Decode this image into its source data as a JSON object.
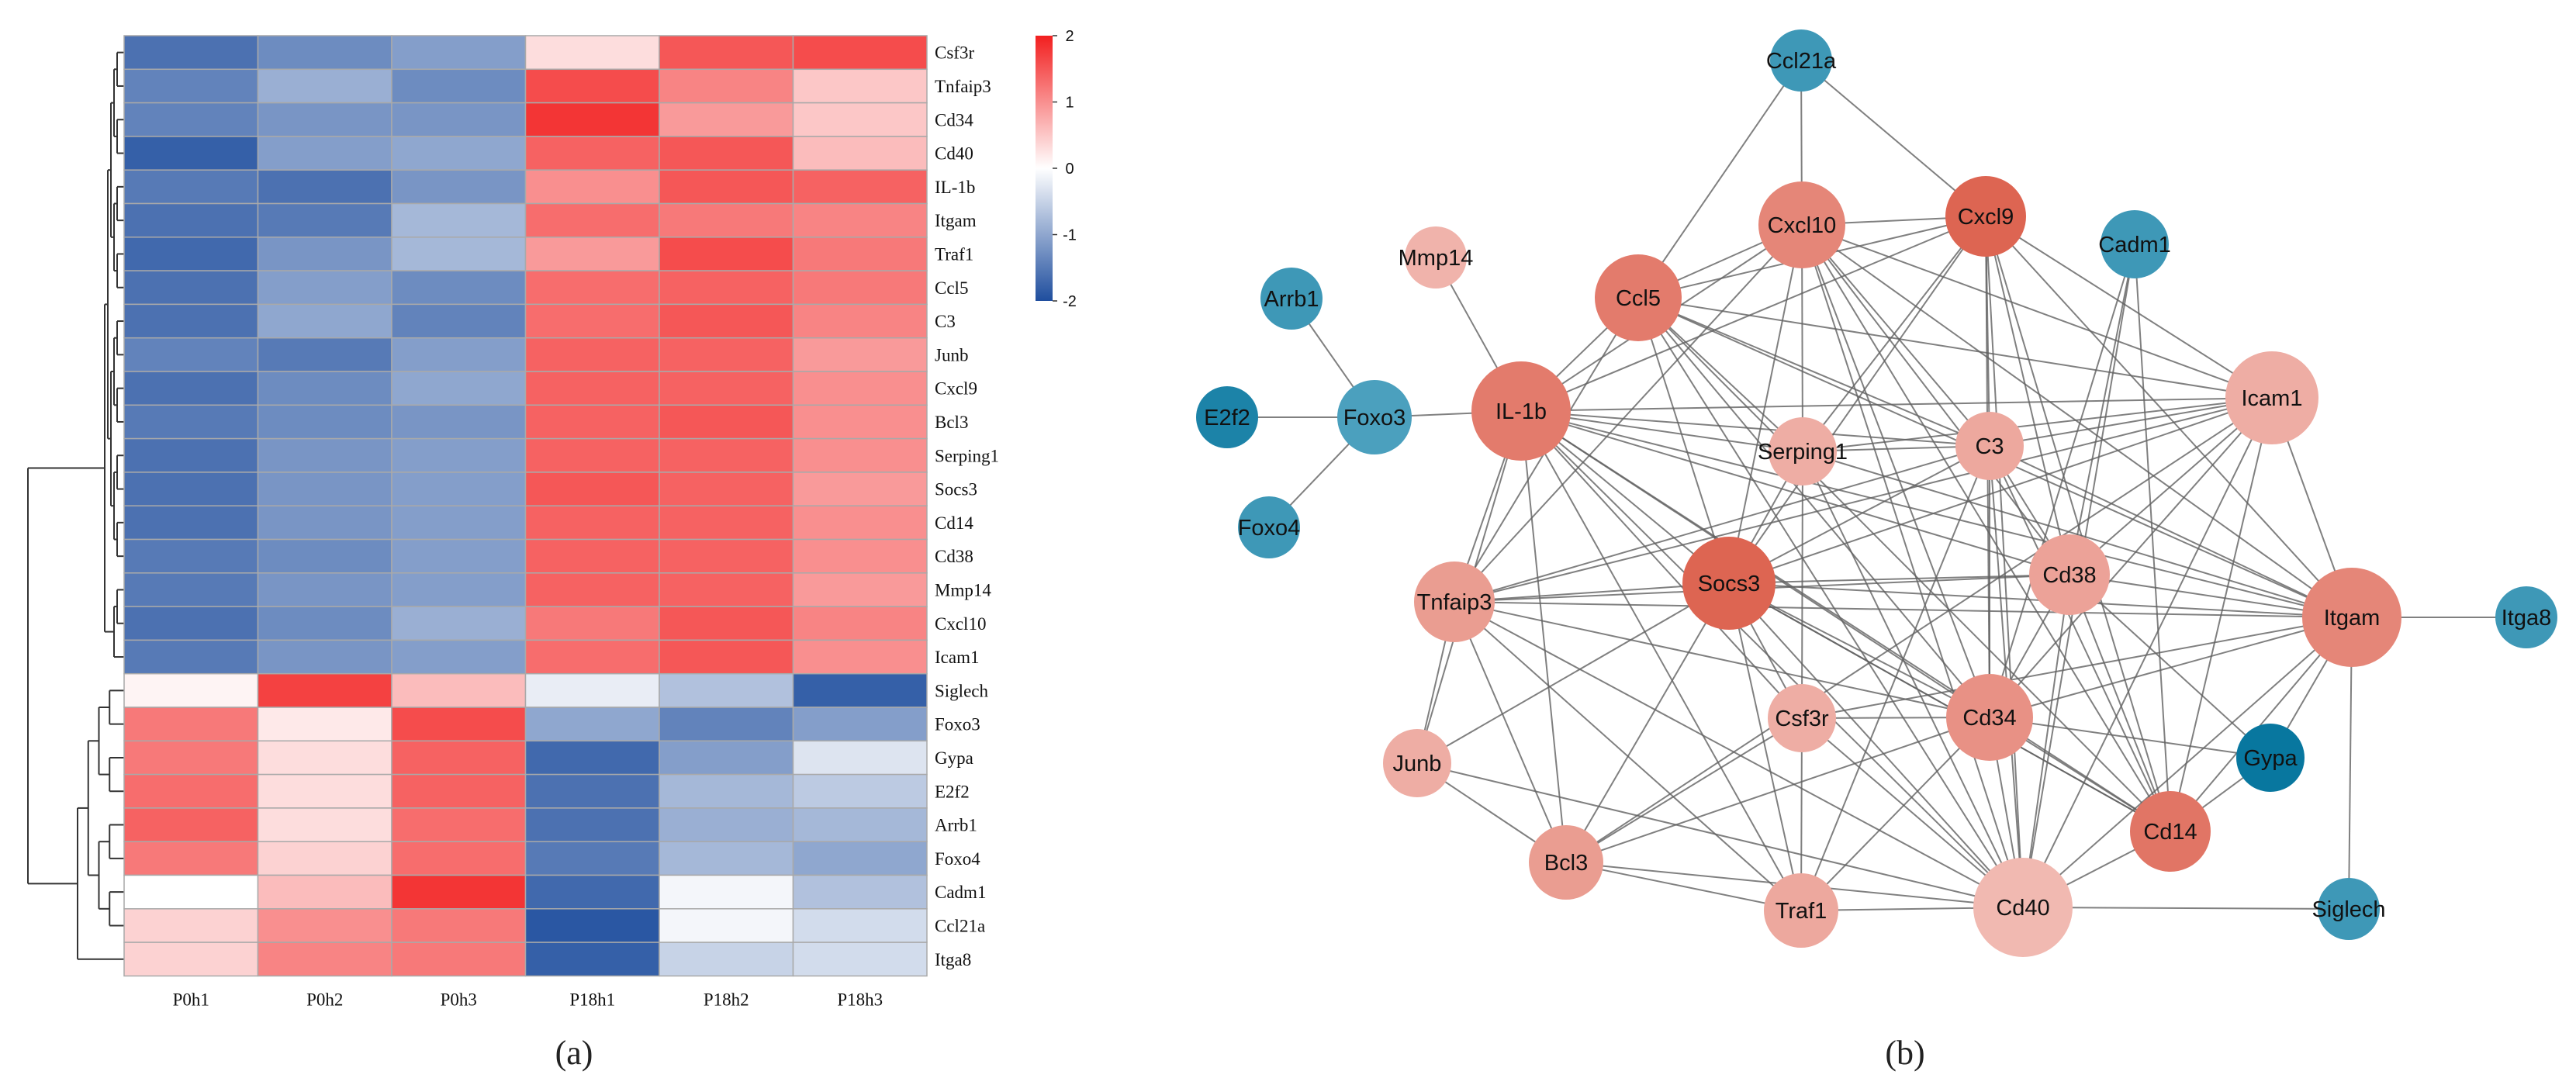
{
  "chart_data": [
    {
      "type": "heatmap",
      "panel_label": "(a)",
      "columns": [
        "P0h1",
        "P0h2",
        "P0h3",
        "P18h1",
        "P18h2",
        "P18h3"
      ],
      "rows": [
        "Csf3r",
        "Tnfaip3",
        "Cd34",
        "Cd40",
        "IL-1b",
        "Itgam",
        "Traf1",
        "Ccl5",
        "C3",
        "Junb",
        "Cxcl9",
        "Bcl3",
        "Serping1",
        "Socs3",
        "Cd14",
        "Cd38",
        "Mmp14",
        "Cxcl10",
        "Icam1",
        "Siglech",
        "Foxo3",
        "Gypa",
        "E2f2",
        "Arrb1",
        "Foxo4",
        "Cadm1",
        "Ccl21a",
        "Itga8"
      ],
      "values": [
        [
          -1.6,
          -1.3,
          -1.1,
          0.3,
          1.5,
          1.6
        ],
        [
          -1.4,
          -0.9,
          -1.3,
          1.6,
          1.1,
          0.5
        ],
        [
          -1.4,
          -1.2,
          -1.2,
          1.8,
          0.9,
          0.5
        ],
        [
          -1.8,
          -1.1,
          -1.0,
          1.4,
          1.5,
          0.6
        ],
        [
          -1.5,
          -1.6,
          -1.2,
          1.0,
          1.5,
          1.4
        ],
        [
          -1.6,
          -1.5,
          -0.8,
          1.3,
          1.2,
          1.1
        ],
        [
          -1.7,
          -1.2,
          -0.8,
          0.9,
          1.6,
          1.2
        ],
        [
          -1.6,
          -1.1,
          -1.3,
          1.3,
          1.4,
          1.2
        ],
        [
          -1.6,
          -1.0,
          -1.4,
          1.3,
          1.5,
          1.1
        ],
        [
          -1.4,
          -1.5,
          -1.1,
          1.4,
          1.4,
          0.9
        ],
        [
          -1.6,
          -1.3,
          -1.0,
          1.4,
          1.4,
          1.0
        ],
        [
          -1.5,
          -1.3,
          -1.2,
          1.4,
          1.5,
          1.0
        ],
        [
          -1.6,
          -1.2,
          -1.1,
          1.4,
          1.4,
          1.0
        ],
        [
          -1.6,
          -1.2,
          -1.1,
          1.5,
          1.4,
          0.9
        ],
        [
          -1.6,
          -1.2,
          -1.1,
          1.4,
          1.4,
          1.0
        ],
        [
          -1.5,
          -1.3,
          -1.1,
          1.4,
          1.4,
          1.0
        ],
        [
          -1.5,
          -1.2,
          -1.1,
          1.4,
          1.4,
          0.9
        ],
        [
          -1.6,
          -1.3,
          -0.9,
          1.2,
          1.5,
          1.1
        ],
        [
          -1.5,
          -1.2,
          -1.1,
          1.3,
          1.5,
          1.0
        ],
        [
          0.1,
          1.7,
          0.6,
          -0.2,
          -0.7,
          -1.8
        ],
        [
          1.2,
          0.2,
          1.6,
          -1.0,
          -1.4,
          -1.1
        ],
        [
          1.2,
          0.3,
          1.4,
          -1.7,
          -1.1,
          -0.3
        ],
        [
          1.3,
          0.3,
          1.4,
          -1.6,
          -0.8,
          -0.6
        ],
        [
          1.4,
          0.3,
          1.3,
          -1.6,
          -0.9,
          -0.8
        ],
        [
          1.2,
          0.4,
          1.3,
          -1.5,
          -0.8,
          -1.0
        ],
        [
          0.0,
          0.6,
          1.8,
          -1.7,
          -0.1,
          -0.7
        ],
        [
          0.4,
          1.0,
          1.2,
          -1.9,
          -0.1,
          -0.4
        ],
        [
          0.4,
          1.1,
          1.2,
          -1.8,
          -0.5,
          -0.4
        ]
      ],
      "colorbar": {
        "min": -2,
        "max": 2,
        "ticks": [
          2,
          1,
          0,
          -1,
          -2
        ],
        "low_color": "#1f4e9e",
        "mid_color": "#ffffff",
        "high_color": "#f21f1f"
      },
      "row_dendrogram": {
        "cluster_break_after_row": 19
      }
    },
    {
      "type": "network",
      "panel_label": "(b)",
      "nodes": [
        {
          "id": "Ccl21a",
          "group": "down",
          "level": 0.6,
          "size": 1.0
        },
        {
          "id": "Mmp14",
          "group": "up",
          "level": 0.25,
          "size": 1.0
        },
        {
          "id": "Arrb1",
          "group": "down",
          "level": 0.6,
          "size": 1.0
        },
        {
          "id": "E2f2",
          "group": "down",
          "level": 0.85,
          "size": 1.0
        },
        {
          "id": "Foxo3",
          "group": "down",
          "level": 0.5,
          "size": 1.2
        },
        {
          "id": "Foxo4",
          "group": "down",
          "level": 0.6,
          "size": 1.0
        },
        {
          "id": "IL-1b",
          "group": "up",
          "level": 0.75,
          "size": 1.6
        },
        {
          "id": "Ccl5",
          "group": "up",
          "level": 0.75,
          "size": 1.4
        },
        {
          "id": "Cxcl10",
          "group": "up",
          "level": 0.65,
          "size": 1.4
        },
        {
          "id": "Cxcl9",
          "group": "up",
          "level": 0.95,
          "size": 1.3
        },
        {
          "id": "Cadm1",
          "group": "down",
          "level": 0.6,
          "size": 1.1
        },
        {
          "id": "Icam1",
          "group": "up",
          "level": 0.3,
          "size": 1.5
        },
        {
          "id": "Serping1",
          "group": "up",
          "level": 0.3,
          "size": 1.1
        },
        {
          "id": "C3",
          "group": "up",
          "level": 0.35,
          "size": 1.1
        },
        {
          "id": "Cd38",
          "group": "up",
          "level": 0.4,
          "size": 1.3
        },
        {
          "id": "Itgam",
          "group": "up",
          "level": 0.65,
          "size": 1.6
        },
        {
          "id": "Itga8",
          "group": "down",
          "level": 0.6,
          "size": 1.0
        },
        {
          "id": "Tnfaip3",
          "group": "up",
          "level": 0.45,
          "size": 1.3
        },
        {
          "id": "Socs3",
          "group": "up",
          "level": 0.95,
          "size": 1.5
        },
        {
          "id": "Csf3r",
          "group": "up",
          "level": 0.3,
          "size": 1.1
        },
        {
          "id": "Cd34",
          "group": "up",
          "level": 0.55,
          "size": 1.4
        },
        {
          "id": "Gypa",
          "group": "down",
          "level": 1.0,
          "size": 1.1
        },
        {
          "id": "Junb",
          "group": "up",
          "level": 0.3,
          "size": 1.1
        },
        {
          "id": "Cd14",
          "group": "up",
          "level": 0.8,
          "size": 1.3
        },
        {
          "id": "Bcl3",
          "group": "up",
          "level": 0.45,
          "size": 1.2
        },
        {
          "id": "Traf1",
          "group": "up",
          "level": 0.35,
          "size": 1.2
        },
        {
          "id": "Cd40",
          "group": "up",
          "level": 0.2,
          "size": 1.6
        },
        {
          "id": "Siglech",
          "group": "down",
          "level": 0.6,
          "size": 1.0
        }
      ],
      "edges": [
        [
          "Ccl21a",
          "Cxcl10"
        ],
        [
          "Ccl21a",
          "Cxcl9"
        ],
        [
          "Ccl21a",
          "Ccl5"
        ],
        [
          "Mmp14",
          "IL-1b"
        ],
        [
          "Arrb1",
          "Foxo3"
        ],
        [
          "E2f2",
          "Foxo3"
        ],
        [
          "Foxo4",
          "Foxo3"
        ],
        [
          "Foxo3",
          "IL-1b"
        ],
        [
          "Itgam",
          "Itga8"
        ],
        [
          "Itgam",
          "Siglech"
        ],
        [
          "Gypa",
          "Cd34"
        ],
        [
          "Gypa",
          "Itgam"
        ],
        [
          "Gypa",
          "Cd14"
        ],
        [
          "Cadm1",
          "Cd34"
        ],
        [
          "Cadm1",
          "Cd38"
        ],
        [
          "Cadm1",
          "Cd14"
        ],
        [
          "Cadm1",
          "Cd40"
        ],
        [
          "IL-1b",
          "Ccl5"
        ],
        [
          "IL-1b",
          "Cxcl10"
        ],
        [
          "IL-1b",
          "Cxcl9"
        ],
        [
          "IL-1b",
          "Icam1"
        ],
        [
          "IL-1b",
          "C3"
        ],
        [
          "IL-1b",
          "Serping1"
        ],
        [
          "IL-1b",
          "Socs3"
        ],
        [
          "IL-1b",
          "Cd38"
        ],
        [
          "IL-1b",
          "Itgam"
        ],
        [
          "IL-1b",
          "Tnfaip3"
        ],
        [
          "IL-1b",
          "Junb"
        ],
        [
          "IL-1b",
          "Bcl3"
        ],
        [
          "IL-1b",
          "Traf1"
        ],
        [
          "IL-1b",
          "Cd40"
        ],
        [
          "IL-1b",
          "Cd34"
        ],
        [
          "IL-1b",
          "Csf3r"
        ],
        [
          "IL-1b",
          "Cd14"
        ],
        [
          "Ccl5",
          "Cxcl10"
        ],
        [
          "Ccl5",
          "Cxcl9"
        ],
        [
          "Ccl5",
          "Icam1"
        ],
        [
          "Ccl5",
          "C3"
        ],
        [
          "Ccl5",
          "Socs3"
        ],
        [
          "Ccl5",
          "Cd40"
        ],
        [
          "Ccl5",
          "Itgam"
        ],
        [
          "Ccl5",
          "Tnfaip3"
        ],
        [
          "Ccl5",
          "Cd34"
        ],
        [
          "Ccl5",
          "Serping1"
        ],
        [
          "Ccl5",
          "Cd14"
        ],
        [
          "Cxcl10",
          "Cxcl9"
        ],
        [
          "Cxcl10",
          "Icam1"
        ],
        [
          "Cxcl10",
          "C3"
        ],
        [
          "Cxcl10",
          "Socs3"
        ],
        [
          "Cxcl10",
          "Cd40"
        ],
        [
          "Cxcl10",
          "Itgam"
        ],
        [
          "Cxcl10",
          "Cd38"
        ],
        [
          "Cxcl10",
          "Cd34"
        ],
        [
          "Cxcl10",
          "Serping1"
        ],
        [
          "Cxcl10",
          "Tnfaip3"
        ],
        [
          "Cxcl10",
          "Cd14"
        ],
        [
          "Cxcl9",
          "Icam1"
        ],
        [
          "Cxcl9",
          "C3"
        ],
        [
          "Cxcl9",
          "Cd40"
        ],
        [
          "Cxcl9",
          "Itgam"
        ],
        [
          "Cxcl9",
          "Socs3"
        ],
        [
          "Cxcl9",
          "Cd38"
        ],
        [
          "Cxcl9",
          "Cd34"
        ],
        [
          "Cxcl9",
          "Serping1"
        ],
        [
          "Cxcl9",
          "Cd14"
        ],
        [
          "Icam1",
          "C3"
        ],
        [
          "Icam1",
          "Socs3"
        ],
        [
          "Icam1",
          "Cd38"
        ],
        [
          "Icam1",
          "Itgam"
        ],
        [
          "Icam1",
          "Cd40"
        ],
        [
          "Icam1",
          "Cd34"
        ],
        [
          "Icam1",
          "Tnfaip3"
        ],
        [
          "Icam1",
          "Cd14"
        ],
        [
          "Icam1",
          "Serping1"
        ],
        [
          "Icam1",
          "Bcl3"
        ],
        [
          "Serping1",
          "C3"
        ],
        [
          "Serping1",
          "Socs3"
        ],
        [
          "Serping1",
          "Cd40"
        ],
        [
          "Serping1",
          "Itgam"
        ],
        [
          "Serping1",
          "Csf3r"
        ],
        [
          "C3",
          "Socs3"
        ],
        [
          "C3",
          "Cd38"
        ],
        [
          "C3",
          "Itgam"
        ],
        [
          "C3",
          "Cd40"
        ],
        [
          "C3",
          "Cd34"
        ],
        [
          "C3",
          "Tnfaip3"
        ],
        [
          "C3",
          "Cd14"
        ],
        [
          "C3",
          "Traf1"
        ],
        [
          "Cd38",
          "Itgam"
        ],
        [
          "Cd38",
          "Cd34"
        ],
        [
          "Cd38",
          "Socs3"
        ],
        [
          "Cd38",
          "Cd40"
        ],
        [
          "Cd38",
          "Cd14"
        ],
        [
          "Cd38",
          "Gypa"
        ],
        [
          "Cd38",
          "Tnfaip3"
        ],
        [
          "Itgam",
          "Cd34"
        ],
        [
          "Itgam",
          "Cd40"
        ],
        [
          "Itgam",
          "Cd14"
        ],
        [
          "Itgam",
          "Socs3"
        ],
        [
          "Itgam",
          "Csf3r"
        ],
        [
          "Itgam",
          "Tnfaip3"
        ],
        [
          "Tnfaip3",
          "Socs3"
        ],
        [
          "Tnfaip3",
          "Junb"
        ],
        [
          "Tnfaip3",
          "Bcl3"
        ],
        [
          "Tnfaip3",
          "Traf1"
        ],
        [
          "Tnfaip3",
          "Cd40"
        ],
        [
          "Tnfaip3",
          "Cd34"
        ],
        [
          "Socs3",
          "Cd34"
        ],
        [
          "Socs3",
          "Cd40"
        ],
        [
          "Socs3",
          "Csf3r"
        ],
        [
          "Socs3",
          "Junb"
        ],
        [
          "Socs3",
          "Bcl3"
        ],
        [
          "Socs3",
          "Traf1"
        ],
        [
          "Socs3",
          "Cd14"
        ],
        [
          "Csf3r",
          "Cd34"
        ],
        [
          "Csf3r",
          "Cd40"
        ],
        [
          "Csf3r",
          "Bcl3"
        ],
        [
          "Csf3r",
          "Traf1"
        ],
        [
          "Cd34",
          "Cd40"
        ],
        [
          "Cd34",
          "Cd14"
        ],
        [
          "Cd34",
          "Traf1"
        ],
        [
          "Cd34",
          "Bcl3"
        ],
        [
          "Junb",
          "Bcl3"
        ],
        [
          "Junb",
          "Cd40"
        ],
        [
          "Bcl3",
          "Traf1"
        ],
        [
          "Bcl3",
          "Cd40"
        ],
        [
          "Traf1",
          "Cd40"
        ],
        [
          "Cd40",
          "Cd14"
        ],
        [
          "Cd40",
          "Siglech"
        ],
        [
          "Cd14",
          "Socs3"
        ]
      ],
      "colors": {
        "up_light": "#f6cfca",
        "up_dark": "#dc5f4c",
        "down_light": "#8ec9dc",
        "down_dark": "#08779f",
        "edge": "#606060"
      }
    }
  ]
}
